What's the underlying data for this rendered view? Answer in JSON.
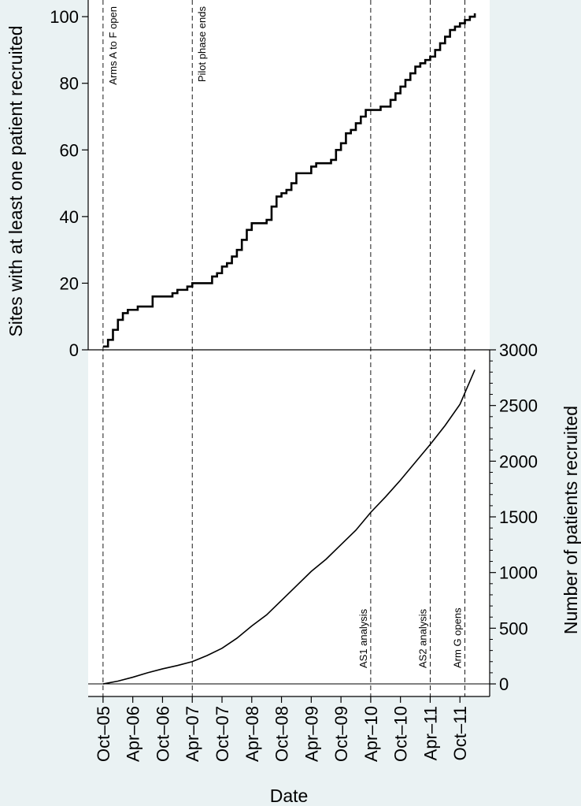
{
  "chart_data": [
    {
      "type": "line",
      "step": true,
      "ylabel": "Sites with at least one patient recruited",
      "ylim": [
        0,
        105
      ],
      "yticks": [
        0,
        20,
        40,
        60,
        80,
        100
      ],
      "xlim": [
        "2005-07",
        "2012-04"
      ],
      "color": "#000000",
      "x": [
        "2005-10",
        "2005-11",
        "2005-12",
        "2006-01",
        "2006-02",
        "2006-03",
        "2006-04",
        "2006-05",
        "2006-06",
        "2006-07",
        "2006-08",
        "2006-09",
        "2006-10",
        "2006-11",
        "2006-12",
        "2007-01",
        "2007-02",
        "2007-03",
        "2007-04",
        "2007-05",
        "2007-06",
        "2007-07",
        "2007-08",
        "2007-09",
        "2007-10",
        "2007-11",
        "2007-12",
        "2008-01",
        "2008-02",
        "2008-03",
        "2008-04",
        "2008-05",
        "2008-06",
        "2008-07",
        "2008-08",
        "2008-09",
        "2008-10",
        "2008-11",
        "2008-12",
        "2009-01",
        "2009-02",
        "2009-03",
        "2009-04",
        "2009-05",
        "2009-06",
        "2009-07",
        "2009-08",
        "2009-09",
        "2009-10",
        "2009-11",
        "2009-12",
        "2010-01",
        "2010-02",
        "2010-03",
        "2010-04",
        "2010-05",
        "2010-06",
        "2010-07",
        "2010-08",
        "2010-09",
        "2010-10",
        "2010-11",
        "2010-12",
        "2011-01",
        "2011-02",
        "2011-03",
        "2011-04",
        "2011-05",
        "2011-06",
        "2011-07",
        "2011-08",
        "2011-09",
        "2011-10",
        "2011-11",
        "2011-12",
        "2012-01"
      ],
      "values": [
        1,
        3,
        6,
        9,
        11,
        12,
        12,
        13,
        13,
        13,
        16,
        16,
        16,
        16,
        17,
        18,
        18,
        19,
        20,
        20,
        20,
        20,
        22,
        23,
        25,
        26,
        28,
        30,
        33,
        36,
        38,
        38,
        38,
        39,
        43,
        46,
        47,
        48,
        50,
        53,
        53,
        53,
        55,
        56,
        56,
        56,
        57,
        60,
        62,
        65,
        66,
        68,
        70,
        72,
        72,
        72,
        73,
        73,
        75,
        77,
        79,
        81,
        83,
        85,
        86,
        87,
        88,
        90,
        92,
        94,
        96,
        97,
        98,
        99,
        100,
        101
      ],
      "annotations": [
        {
          "x": "2005-10",
          "label": "Arms A to F open"
        },
        {
          "x": "2007-04",
          "label": "Pilot phase ends"
        }
      ]
    },
    {
      "type": "line",
      "ylabel": "Number of patients recruited",
      "xlabel": "Date",
      "ylim": [
        -113,
        3000
      ],
      "yticks": [
        0,
        500,
        1000,
        1500,
        2000,
        2500,
        3000
      ],
      "yminorticks": [
        100,
        200,
        300,
        400,
        600,
        700,
        800,
        900,
        1100,
        1200,
        1300,
        1400,
        1600,
        1700,
        1800,
        1900,
        2100,
        2200,
        2300,
        2400,
        2600,
        2700,
        2800,
        2900
      ],
      "xlim": [
        "2005-07",
        "2012-04"
      ],
      "xticks": [
        {
          "value": "2005-10",
          "label": "Oct–05"
        },
        {
          "value": "2006-04",
          "label": "Apr–06"
        },
        {
          "value": "2006-10",
          "label": "Oct–06"
        },
        {
          "value": "2007-04",
          "label": "Apr–07"
        },
        {
          "value": "2007-10",
          "label": "Oct–07"
        },
        {
          "value": "2008-04",
          "label": "Apr–08"
        },
        {
          "value": "2008-10",
          "label": "Oct–08"
        },
        {
          "value": "2009-04",
          "label": "Apr–09"
        },
        {
          "value": "2009-10",
          "label": "Oct–09"
        },
        {
          "value": "2010-04",
          "label": "Apr–10"
        },
        {
          "value": "2010-10",
          "label": "Oct–10"
        },
        {
          "value": "2011-04",
          "label": "Apr–11"
        },
        {
          "value": "2011-10",
          "label": "Oct–11"
        }
      ],
      "color": "#000000",
      "x": [
        "2005-10",
        "2006-01",
        "2006-04",
        "2006-07",
        "2006-10",
        "2007-01",
        "2007-04",
        "2007-07",
        "2007-10",
        "2008-01",
        "2008-04",
        "2008-07",
        "2008-10",
        "2009-01",
        "2009-04",
        "2009-07",
        "2009-10",
        "2010-01",
        "2010-04",
        "2010-07",
        "2010-10",
        "2011-01",
        "2011-04",
        "2011-07",
        "2011-10",
        "2012-01"
      ],
      "values": [
        0,
        25,
        60,
        100,
        135,
        165,
        200,
        255,
        320,
        410,
        520,
        620,
        750,
        880,
        1010,
        1120,
        1250,
        1380,
        1540,
        1680,
        1830,
        1990,
        2150,
        2320,
        2510,
        2820
      ],
      "annotations": [
        {
          "x": "2010-04",
          "label": "AS1 analysis"
        },
        {
          "x": "2011-04",
          "label": "AS2 analysis"
        },
        {
          "x": "2011-11",
          "label": "Arm G opens"
        }
      ]
    }
  ]
}
